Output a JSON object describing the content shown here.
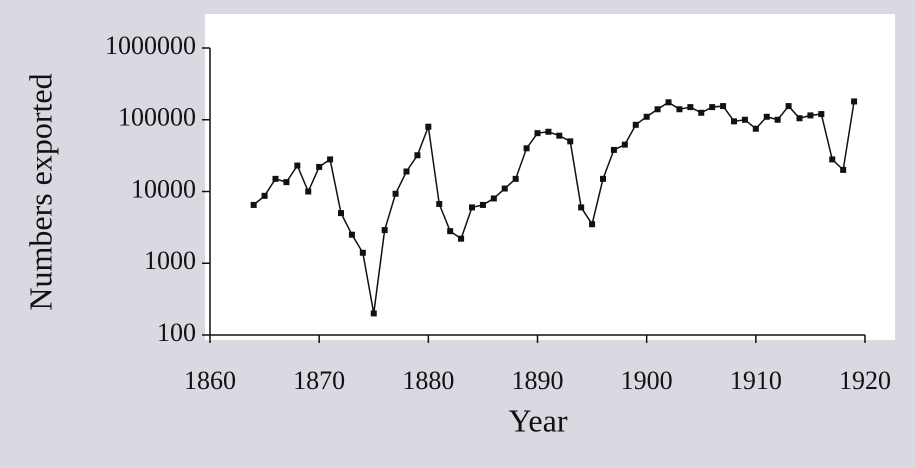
{
  "chart_data": {
    "type": "line",
    "x_label": "Year",
    "y_label": "Numbers exported",
    "x": [
      1864,
      1865,
      1866,
      1867,
      1868,
      1869,
      1870,
      1871,
      1872,
      1873,
      1874,
      1875,
      1876,
      1877,
      1878,
      1879,
      1880,
      1881,
      1882,
      1883,
      1884,
      1885,
      1886,
      1887,
      1888,
      1889,
      1890,
      1891,
      1892,
      1893,
      1894,
      1895,
      1896,
      1897,
      1898,
      1899,
      1900,
      1901,
      1902,
      1903,
      1904,
      1905,
      1906,
      1907,
      1908,
      1909,
      1910,
      1911,
      1912,
      1913,
      1914,
      1915,
      1916,
      1917,
      1918,
      1919
    ],
    "series": [
      {
        "color": "#111111",
        "values": [
          6500,
          8700,
          15000,
          13500,
          23000,
          10000,
          22000,
          28000,
          5000,
          2500,
          1400,
          200,
          2900,
          9300,
          19000,
          32000,
          80000,
          6700,
          2800,
          2200,
          6000,
          6500,
          8000,
          11000,
          15000,
          40000,
          65000,
          68000,
          60000,
          50000,
          6000,
          3500,
          15000,
          38000,
          45000,
          85000,
          110000,
          140000,
          175000,
          140000,
          150000,
          125000,
          150000,
          155000,
          95000,
          100000,
          75000,
          110000,
          100000,
          155000,
          105000,
          115000,
          120000,
          28000,
          20000,
          180000
        ]
      }
    ],
    "xlim": [
      1860,
      1920
    ],
    "xticks": [
      1860,
      1870,
      1880,
      1890,
      1900,
      1910,
      1920
    ],
    "ylim": [
      100,
      1000000
    ],
    "yticks": [
      100,
      1000,
      10000,
      100000,
      1000000
    ],
    "ylog": true
  }
}
